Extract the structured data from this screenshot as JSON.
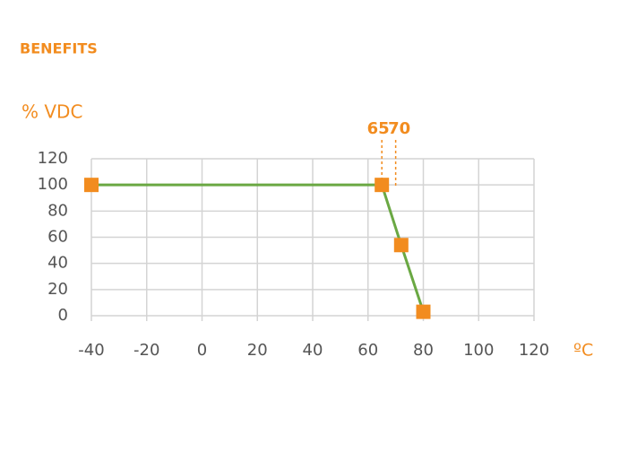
{
  "chart_data": {
    "type": "line",
    "title": "BENEFITS",
    "y_label": "% VDC",
    "x_label": "ºC",
    "x": [
      -40,
      65,
      72,
      80
    ],
    "values": [
      100,
      100,
      54,
      3
    ],
    "color": "#6aa843",
    "marker_color": "#f28c1f",
    "accent_color": "#f28c1f",
    "xlim": [
      -40,
      120
    ],
    "xticks": [
      -40,
      -20,
      0,
      20,
      40,
      60,
      80,
      100,
      120
    ],
    "ylim": [
      0,
      120
    ],
    "yticks": [
      0,
      20,
      40,
      60,
      80,
      100,
      120
    ],
    "grid": true,
    "annotations": [
      {
        "x": 65,
        "label": "65"
      },
      {
        "x": 70,
        "label": "70"
      }
    ]
  }
}
